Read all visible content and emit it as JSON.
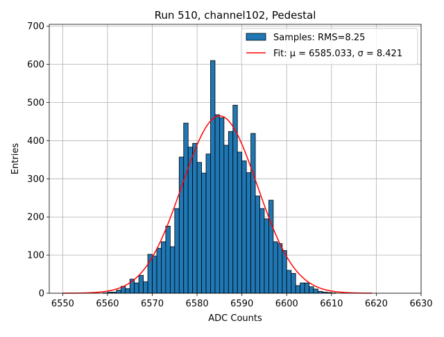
{
  "chart_data": {
    "type": "bar",
    "title": "Run 510, channel102, Pedestal",
    "xlabel": "ADC Counts",
    "ylabel": "Entries",
    "xlim": [
      6547,
      6630
    ],
    "ylim": [
      0,
      705
    ],
    "xticks": [
      6550,
      6560,
      6570,
      6580,
      6590,
      6600,
      6610,
      6620,
      6630
    ],
    "yticks": [
      0,
      100,
      200,
      300,
      400,
      500,
      600,
      700
    ],
    "grid": true,
    "legend_position": "top-right",
    "colors": {
      "bar_fill": "#1f77b4",
      "bar_edge": "#000000",
      "fit_line": "#ff0000",
      "grid": "#b0b0b0"
    },
    "histogram": {
      "name": "Samples",
      "legend_label": "Samples: RMS=8.25",
      "bin_start": 6559,
      "bin_width": 1,
      "counts": [
        1,
        3,
        3,
        8,
        18,
        12,
        37,
        27,
        47,
        30,
        102,
        97,
        118,
        135,
        176,
        122,
        222,
        357,
        446,
        383,
        393,
        343,
        315,
        365,
        610,
        468,
        460,
        388,
        424,
        493,
        370,
        347,
        316,
        419,
        255,
        222,
        195,
        244,
        135,
        130,
        112,
        60,
        52,
        20,
        27,
        27,
        17,
        11,
        5,
        3,
        2,
        1
      ]
    },
    "fit": {
      "legend_label": "Fit: μ = 6585.033, σ = 8.421",
      "mu": 6585.033,
      "sigma": 8.421,
      "amplitude": 465,
      "x_range": [
        6550,
        6619
      ]
    }
  }
}
